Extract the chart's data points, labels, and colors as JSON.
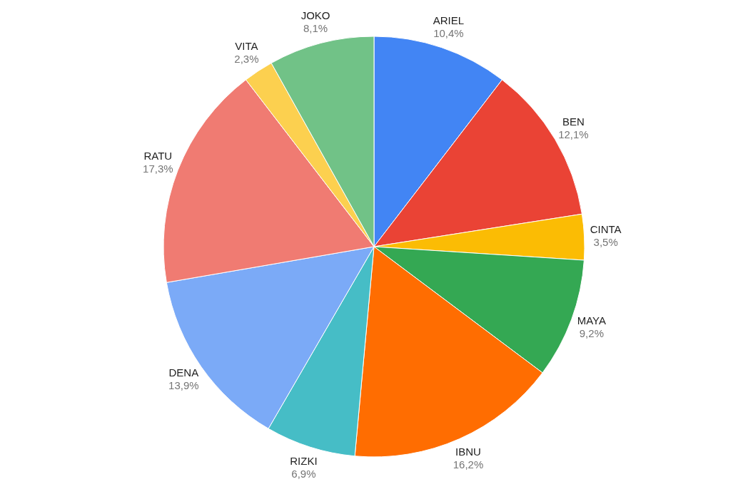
{
  "chart_data": {
    "type": "pie",
    "categories": [
      "ARIEL",
      "BEN",
      "CINTA",
      "MAYA",
      "IBNU",
      "RIZKI",
      "DENA",
      "RATU",
      "VITA",
      "JOKO"
    ],
    "values": [
      10.4,
      12.1,
      3.5,
      9.2,
      16.2,
      6.9,
      13.9,
      17.3,
      2.3,
      8.1
    ],
    "value_labels": [
      "10,4%",
      "12,1%",
      "3,5%",
      "9,2%",
      "16,2%",
      "6,9%",
      "13,9%",
      "17,3%",
      "2,3%",
      "8,1%"
    ],
    "colors": [
      "#4285f4",
      "#ea4335",
      "#fbbc04",
      "#34a853",
      "#ff6d01",
      "#46bdc6",
      "#7baaf7",
      "#f07b72",
      "#fcd04f",
      "#71c287"
    ],
    "legend": false
  }
}
